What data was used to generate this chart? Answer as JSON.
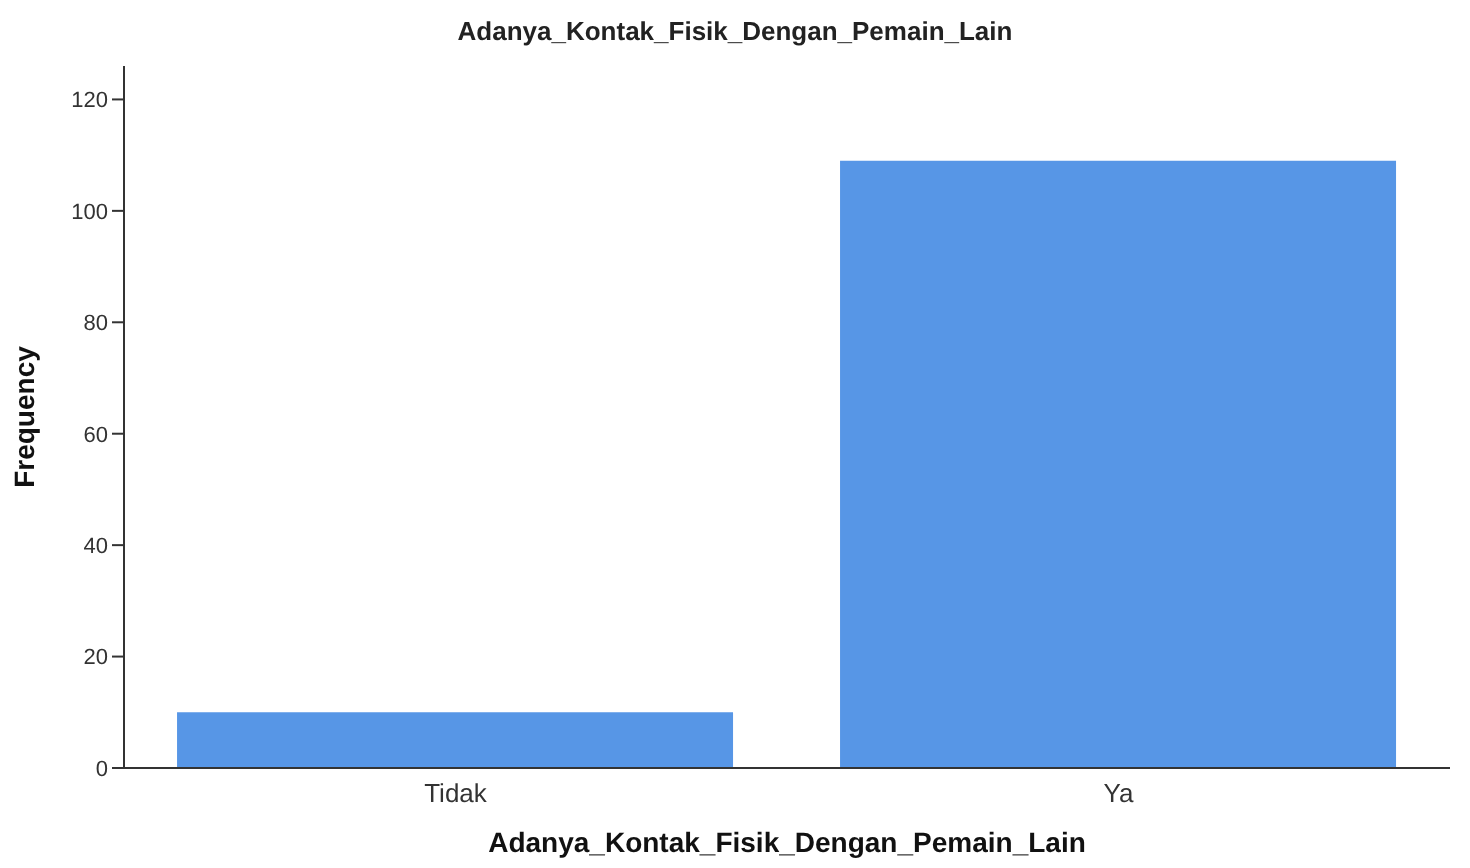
{
  "chart_data": {
    "type": "bar",
    "title": "Adanya_Kontak_Fisik_Dengan_Pemain_Lain",
    "xlabel": "Adanya_Kontak_Fisik_Dengan_Pemain_Lain",
    "ylabel": "Frequency",
    "categories": [
      "Tidak",
      "Ya"
    ],
    "values": [
      10,
      109
    ],
    "color": "#5796e6",
    "ylim": [
      0,
      126
    ],
    "yticks": [
      0,
      20,
      40,
      60,
      80,
      100,
      120
    ],
    "grid": false
  }
}
